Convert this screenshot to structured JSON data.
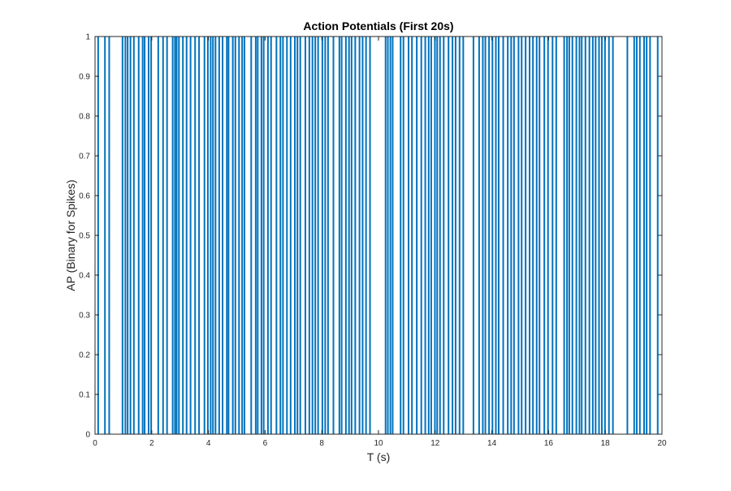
{
  "chart_data": {
    "type": "line",
    "title": "Action Potentials (First 20s)",
    "xlabel": "T (s)",
    "ylabel": "AP (Binary for Spikes)",
    "xlim": [
      0,
      20
    ],
    "ylim": [
      0,
      1
    ],
    "xticks": [
      0,
      2,
      4,
      6,
      8,
      10,
      12,
      14,
      16,
      18,
      20
    ],
    "yticks": [
      0,
      0.1,
      0.2,
      0.3,
      0.4,
      0.5,
      0.6,
      0.7,
      0.8,
      0.9,
      1
    ],
    "grid": false,
    "line_color": "#0072BD",
    "series": [
      {
        "spike_times": [
          0.11,
          0.35,
          0.5,
          0.97,
          1.07,
          1.15,
          1.25,
          1.37,
          1.54,
          1.68,
          1.75,
          1.89,
          1.98,
          2.23,
          2.4,
          2.54,
          2.74,
          2.82,
          2.88,
          2.96,
          3.1,
          3.23,
          3.37,
          3.53,
          3.67,
          3.86,
          3.98,
          4.08,
          4.16,
          4.25,
          4.38,
          4.5,
          4.65,
          4.71,
          4.86,
          4.95,
          5.08,
          5.19,
          5.27,
          5.51,
          5.67,
          5.74,
          5.87,
          5.95,
          6.1,
          6.21,
          6.4,
          6.54,
          6.63,
          6.77,
          6.9,
          7.05,
          7.14,
          7.24,
          7.42,
          7.56,
          7.67,
          7.77,
          7.87,
          8.02,
          8.12,
          8.22,
          8.41,
          8.62,
          8.7,
          8.85,
          8.96,
          9.05,
          9.18,
          9.33,
          9.44,
          9.56,
          9.7,
          10.25,
          10.33,
          10.42,
          10.5,
          10.78,
          10.88,
          11.06,
          11.18,
          11.35,
          11.51,
          11.65,
          11.77,
          11.86,
          11.99,
          12.07,
          12.17,
          12.3,
          12.47,
          12.61,
          12.72,
          12.86,
          12.99,
          13.35,
          13.55,
          13.68,
          13.77,
          13.9,
          14.02,
          14.14,
          14.24,
          14.4,
          14.56,
          14.68,
          14.78,
          14.94,
          15.05,
          15.19,
          15.33,
          15.45,
          15.58,
          15.68,
          15.85,
          15.98,
          16.14,
          16.27,
          16.55,
          16.65,
          16.73,
          16.84,
          16.98,
          17.09,
          17.17,
          17.3,
          17.44,
          17.56,
          17.66,
          17.78,
          17.88,
          17.99,
          18.13,
          18.27,
          18.78,
          19.02,
          19.11,
          19.22,
          19.37,
          19.46,
          19.58,
          19.85
        ]
      }
    ]
  }
}
